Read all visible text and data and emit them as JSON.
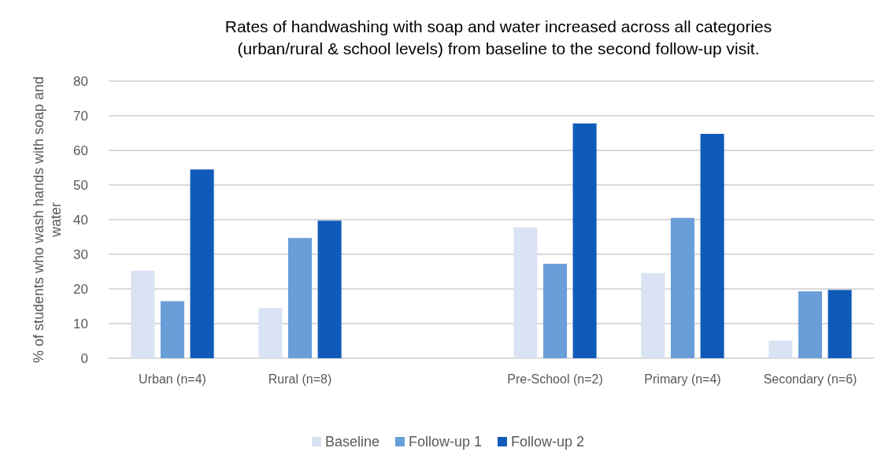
{
  "chart_data": {
    "type": "bar",
    "title": "Rates of handwashing with soap and water increased across all categories\n(urban/rural & school levels) from baseline to the second follow-up visit.",
    "ylabel": "% of students who wash hands with soap and water",
    "categories": [
      "Urban (n=4)",
      "Rural (n=8)",
      null,
      "Pre-School (n=2)",
      "Primary (n=4)",
      "Secondary (n=6)"
    ],
    "series": [
      {
        "name": "Baseline",
        "color": "#dae3f3",
        "values": [
          25.3,
          14.5,
          null,
          37.8,
          24.6,
          5.1
        ]
      },
      {
        "name": "Follow-up 1",
        "color": "#6a9ed8",
        "values": [
          16.5,
          34.7,
          null,
          27.3,
          40.5,
          19.3
        ]
      },
      {
        "name": "Follow-up 2",
        "color": "#105bb9",
        "values": [
          54.5,
          39.7,
          null,
          67.8,
          64.8,
          19.7
        ]
      }
    ],
    "ylim": [
      0,
      80
    ],
    "yticks": [
      0,
      10,
      20,
      30,
      40,
      50,
      60,
      70,
      80
    ],
    "grid": "y",
    "legend": "bottom"
  }
}
